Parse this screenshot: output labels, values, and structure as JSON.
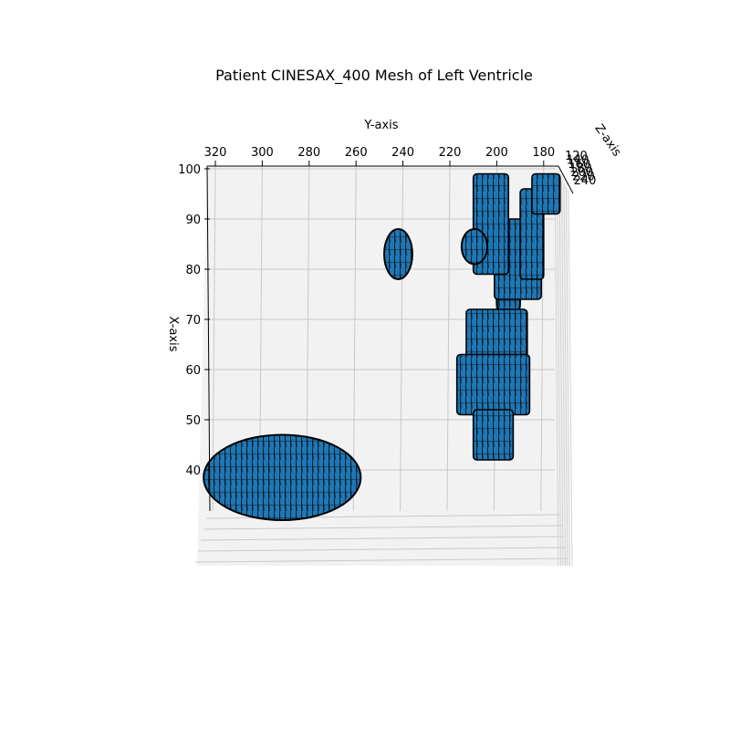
{
  "chart_data": {
    "type": "surface3d",
    "title": "Patient CINESAX_400 Mesh of Left Ventricle",
    "xlabel": "X-axis",
    "ylabel": "Y-axis",
    "zlabel": "Z-axis",
    "y_ticks": [
      "320",
      "300",
      "280",
      "260",
      "240",
      "220",
      "200",
      "180"
    ],
    "x_ticks": [
      "100",
      "90",
      "80",
      "70",
      "60",
      "50",
      "40"
    ],
    "z_ticks": [
      "120",
      "140",
      "160",
      "180",
      "200",
      "220",
      "240"
    ],
    "ylim": [
      322,
      176
    ],
    "xlim": [
      30,
      100
    ],
    "view": "top-down, looking along Z-axis",
    "grid": true,
    "mesh_color": "#1f77b4",
    "edge_color": "#000000",
    "pane_color": "#f2f2f2",
    "meshes": [
      {
        "shape": "ellipse",
        "y": [
          325,
          258
        ],
        "x": [
          30,
          47
        ]
      },
      {
        "shape": "ellipse",
        "y": [
          248,
          236
        ],
        "x": [
          78,
          88
        ]
      },
      {
        "shape": "ellipse",
        "y": [
          200,
          190
        ],
        "x": [
          68,
          80
        ]
      },
      {
        "shape": "rect",
        "y": [
          201,
          181
        ],
        "x": [
          74,
          90
        ]
      },
      {
        "shape": "rect",
        "y": [
          190,
          180
        ],
        "x": [
          78,
          96
        ]
      },
      {
        "shape": "rect",
        "y": [
          210,
          195
        ],
        "x": [
          79,
          99
        ]
      },
      {
        "shape": "rect",
        "y": [
          185,
          173
        ],
        "x": [
          91,
          99
        ]
      },
      {
        "shape": "ellipse",
        "y": [
          215,
          204
        ],
        "x": [
          81,
          88
        ]
      },
      {
        "shape": "rect",
        "y": [
          213,
          187
        ],
        "x": [
          55,
          72
        ]
      },
      {
        "shape": "rect",
        "y": [
          217,
          186
        ],
        "x": [
          51,
          63
        ]
      },
      {
        "shape": "rect",
        "y": [
          210,
          193
        ],
        "x": [
          42,
          52
        ]
      }
    ]
  }
}
